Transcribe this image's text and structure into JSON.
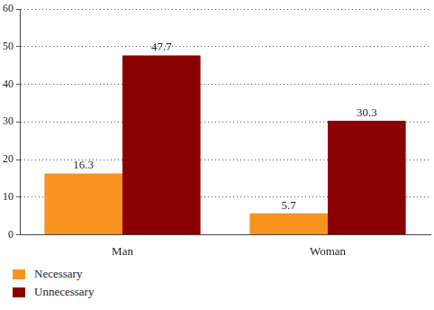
{
  "chart_data": {
    "type": "bar",
    "categories": [
      "Man",
      "Woman"
    ],
    "series": [
      {
        "name": "Necessary",
        "color": "#f7931e",
        "values": [
          16.3,
          5.7
        ]
      },
      {
        "name": "Unnecessary",
        "color": "#8b0000",
        "values": [
          47.7,
          30.3
        ]
      }
    ],
    "ylim": [
      0,
      60
    ],
    "yticks": [
      0,
      10,
      20,
      30,
      40,
      50,
      60
    ],
    "grid": true,
    "legend": "bottom left",
    "data_labels": true
  }
}
